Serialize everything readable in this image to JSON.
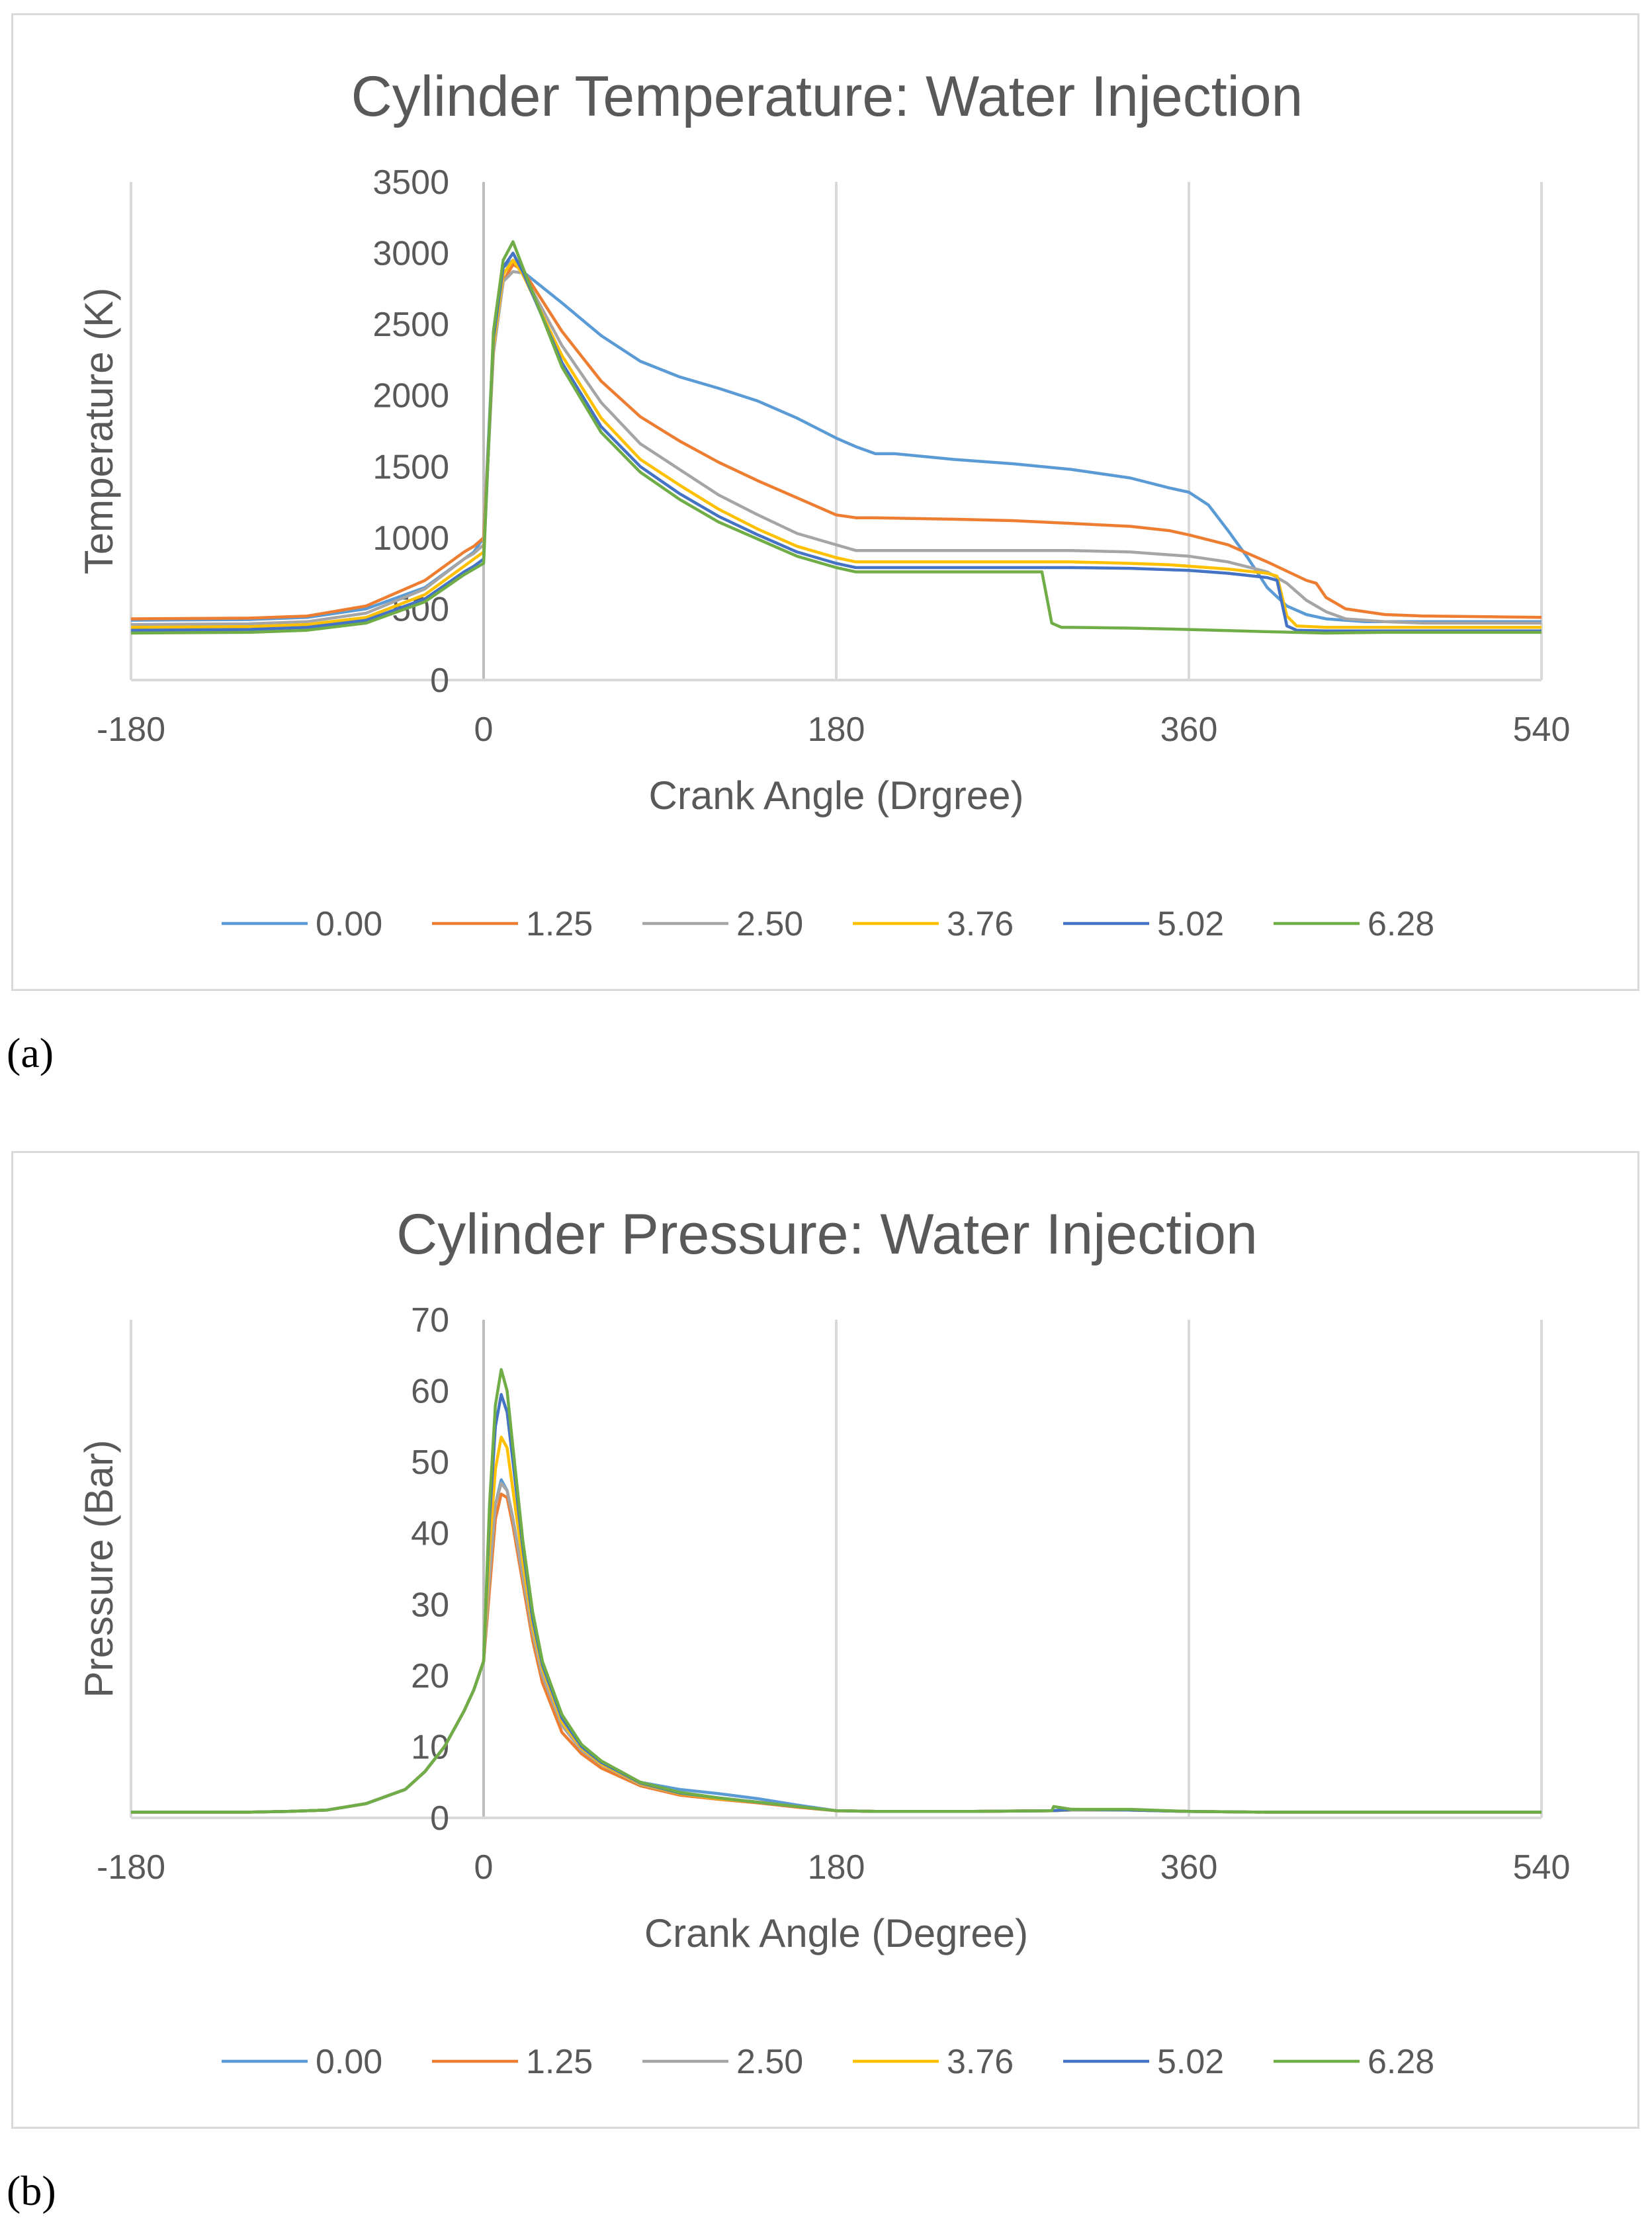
{
  "chart_data": [
    {
      "type": "line",
      "title": "Cylinder Temperature: Water Injection",
      "xlabel": "Crank Angle (Drgree)",
      "ylabel": "Temperature (K)",
      "xlim": [
        -180,
        540
      ],
      "ylim": [
        0,
        3500
      ],
      "xticks": [
        "-180",
        "0",
        "180",
        "360",
        "540"
      ],
      "yticks": [
        "0",
        "500",
        "1000",
        "1500",
        "2000",
        "2500",
        "3000",
        "3500"
      ],
      "grid": "vertical",
      "legend": "bottom",
      "series": [
        {
          "name": "0.00",
          "color": "#5b9bd5",
          "x": [
            -180,
            -120,
            -90,
            -60,
            -30,
            -10,
            -5,
            0,
            5,
            10,
            15,
            20,
            40,
            60,
            80,
            100,
            120,
            140,
            160,
            180,
            190,
            200,
            210,
            240,
            270,
            300,
            330,
            350,
            360,
            370,
            380,
            390,
            400,
            410,
            420,
            430,
            450,
            480,
            540
          ],
          "y": [
            420,
            425,
            440,
            500,
            650,
            850,
            900,
            1000,
            2400,
            2900,
            2950,
            2870,
            2650,
            2420,
            2240,
            2130,
            2050,
            1960,
            1840,
            1700,
            1640,
            1590,
            1590,
            1550,
            1520,
            1480,
            1420,
            1350,
            1320,
            1230,
            1050,
            860,
            650,
            520,
            460,
            430,
            410,
            410,
            410
          ]
        },
        {
          "name": "1.25",
          "color": "#ed7d31",
          "x": [
            -180,
            -120,
            -90,
            -60,
            -30,
            -10,
            -5,
            0,
            5,
            10,
            15,
            20,
            40,
            60,
            80,
            100,
            120,
            140,
            160,
            180,
            190,
            200,
            240,
            270,
            300,
            330,
            350,
            360,
            380,
            400,
            420,
            425,
            430,
            440,
            460,
            480,
            540
          ],
          "y": [
            430,
            435,
            450,
            520,
            700,
            900,
            940,
            1000,
            2300,
            2800,
            2920,
            2880,
            2450,
            2100,
            1850,
            1680,
            1530,
            1400,
            1280,
            1160,
            1140,
            1140,
            1130,
            1120,
            1100,
            1080,
            1050,
            1020,
            950,
            830,
            700,
            680,
            580,
            500,
            460,
            450,
            440
          ]
        },
        {
          "name": "2.50",
          "color": "#a5a5a5",
          "x": [
            -180,
            -120,
            -90,
            -60,
            -30,
            -10,
            -5,
            0,
            5,
            10,
            15,
            20,
            40,
            60,
            80,
            100,
            120,
            140,
            160,
            180,
            190,
            200,
            240,
            270,
            300,
            330,
            350,
            360,
            380,
            400,
            410,
            420,
            430,
            440,
            460,
            480,
            540
          ],
          "y": [
            390,
            395,
            410,
            470,
            640,
            850,
            890,
            950,
            2300,
            2800,
            2870,
            2860,
            2350,
            1950,
            1660,
            1480,
            1300,
            1160,
            1030,
            950,
            910,
            910,
            910,
            910,
            910,
            900,
            880,
            870,
            830,
            760,
            680,
            560,
            480,
            430,
            410,
            400,
            400
          ]
        },
        {
          "name": "3.76",
          "color": "#ffc000",
          "x": [
            -180,
            -120,
            -90,
            -60,
            -30,
            -10,
            -5,
            0,
            5,
            10,
            15,
            20,
            40,
            60,
            80,
            100,
            120,
            140,
            160,
            180,
            190,
            200,
            240,
            270,
            300,
            330,
            350,
            360,
            380,
            400,
            405,
            410,
            415,
            430,
            460,
            540
          ],
          "y": [
            370,
            375,
            390,
            440,
            600,
            800,
            850,
            900,
            2350,
            2850,
            2950,
            2850,
            2280,
            1840,
            1550,
            1370,
            1200,
            1060,
            940,
            860,
            830,
            830,
            830,
            830,
            830,
            820,
            810,
            800,
            780,
            750,
            730,
            450,
            380,
            370,
            370,
            370
          ]
        },
        {
          "name": "5.02",
          "color": "#4472c4",
          "x": [
            -180,
            -120,
            -90,
            -60,
            -30,
            -10,
            -5,
            0,
            5,
            10,
            15,
            20,
            40,
            60,
            80,
            100,
            120,
            140,
            160,
            180,
            190,
            200,
            240,
            270,
            300,
            330,
            350,
            360,
            380,
            400,
            405,
            410,
            415,
            430,
            460,
            540
          ],
          "y": [
            350,
            355,
            370,
            420,
            570,
            760,
            800,
            850,
            2400,
            2900,
            3000,
            2870,
            2230,
            1780,
            1500,
            1310,
            1150,
            1020,
            900,
            820,
            790,
            790,
            790,
            790,
            790,
            785,
            775,
            770,
            750,
            720,
            700,
            380,
            350,
            345,
            345,
            345
          ]
        },
        {
          "name": "6.28",
          "color": "#70ad47",
          "x": [
            -180,
            -120,
            -90,
            -60,
            -30,
            -10,
            -5,
            0,
            5,
            10,
            15,
            20,
            40,
            60,
            80,
            100,
            120,
            140,
            160,
            180,
            190,
            200,
            240,
            270,
            285,
            290,
            295,
            300,
            330,
            360,
            400,
            430,
            460,
            540
          ],
          "y": [
            330,
            335,
            350,
            400,
            550,
            740,
            780,
            820,
            2450,
            2950,
            3080,
            2900,
            2200,
            1740,
            1460,
            1270,
            1110,
            990,
            870,
            790,
            760,
            760,
            760,
            760,
            760,
            400,
            370,
            370,
            365,
            355,
            340,
            330,
            335,
            335
          ]
        }
      ]
    },
    {
      "type": "line",
      "title": "Cylinder Pressure: Water Injection",
      "xlabel": "Crank Angle (Degree)",
      "ylabel": "Pressure (Bar)",
      "xlim": [
        -180,
        540
      ],
      "ylim": [
        0,
        70
      ],
      "xticks": [
        "-180",
        "0",
        "180",
        "360",
        "540"
      ],
      "yticks": [
        "0",
        "10",
        "20",
        "30",
        "40",
        "50",
        "60",
        "70"
      ],
      "grid": "vertical",
      "legend": "bottom",
      "series": [
        {
          "name": "0.00",
          "color": "#5b9bd5",
          "x": [
            -180,
            -120,
            -100,
            -80,
            -60,
            -40,
            -30,
            -20,
            -10,
            -5,
            0,
            3,
            6,
            9,
            12,
            15,
            20,
            25,
            30,
            40,
            50,
            60,
            80,
            100,
            120,
            140,
            160,
            180,
            200,
            250,
            290,
            300,
            330,
            360,
            400,
            450,
            500,
            540
          ],
          "y": [
            0.8,
            0.8,
            0.9,
            1.1,
            2,
            4,
            6.5,
            10,
            15,
            18,
            22,
            34,
            44,
            47.5,
            46,
            42,
            34,
            26,
            20,
            13,
            9.5,
            7.5,
            5,
            4,
            3.4,
            2.7,
            1.8,
            1,
            0.9,
            0.9,
            1,
            1.1,
            1.1,
            0.9,
            0.8,
            0.8,
            0.8,
            0.8
          ]
        },
        {
          "name": "1.25",
          "color": "#ed7d31",
          "x": [
            -180,
            -120,
            -100,
            -80,
            -60,
            -40,
            -30,
            -20,
            -10,
            -5,
            0,
            3,
            6,
            9,
            12,
            15,
            20,
            25,
            30,
            40,
            50,
            60,
            80,
            100,
            120,
            140,
            160,
            180,
            200,
            250,
            290,
            300,
            330,
            360,
            400,
            450,
            500,
            540
          ],
          "y": [
            0.8,
            0.8,
            0.9,
            1.1,
            2,
            4,
            6.5,
            10,
            15,
            18,
            22,
            32,
            42,
            45.5,
            45,
            41,
            33,
            25,
            19,
            12,
            9,
            7,
            4.5,
            3.2,
            2.6,
            2.1,
            1.5,
            1,
            0.9,
            0.9,
            1,
            1.1,
            1.1,
            0.9,
            0.8,
            0.8,
            0.8,
            0.8
          ]
        },
        {
          "name": "2.50",
          "color": "#a5a5a5",
          "x": [
            -180,
            -120,
            -100,
            -80,
            -60,
            -40,
            -30,
            -20,
            -10,
            -5,
            0,
            3,
            6,
            9,
            12,
            15,
            20,
            25,
            30,
            40,
            50,
            60,
            80,
            100,
            120,
            140,
            160,
            180,
            200,
            250,
            290,
            300,
            330,
            360,
            400,
            450,
            500,
            540
          ],
          "y": [
            0.8,
            0.8,
            0.9,
            1.1,
            2,
            4,
            6.5,
            10,
            15,
            18,
            22,
            34,
            44,
            47,
            46,
            42,
            34,
            26,
            20,
            13,
            9.5,
            7.5,
            4.7,
            3.4,
            2.7,
            2.2,
            1.6,
            1,
            0.9,
            0.9,
            1,
            1.1,
            1.1,
            0.9,
            0.8,
            0.8,
            0.8,
            0.8
          ]
        },
        {
          "name": "3.76",
          "color": "#ffc000",
          "x": [
            -180,
            -120,
            -100,
            -80,
            -60,
            -40,
            -30,
            -20,
            -10,
            -5,
            0,
            3,
            6,
            9,
            12,
            15,
            20,
            25,
            30,
            40,
            50,
            60,
            80,
            100,
            120,
            140,
            160,
            180,
            200,
            250,
            290,
            300,
            330,
            360,
            400,
            450,
            500,
            540
          ],
          "y": [
            0.8,
            0.8,
            0.9,
            1.1,
            2,
            4,
            6.5,
            10,
            15,
            18,
            22,
            38,
            49,
            53.5,
            52,
            46,
            36,
            27,
            21,
            13.5,
            9.8,
            7.6,
            4.8,
            3.4,
            2.7,
            2.2,
            1.6,
            1,
            0.9,
            0.9,
            1,
            1.2,
            1.1,
            0.9,
            0.8,
            0.8,
            0.8,
            0.8
          ]
        },
        {
          "name": "5.02",
          "color": "#4472c4",
          "x": [
            -180,
            -120,
            -100,
            -80,
            -60,
            -40,
            -30,
            -20,
            -10,
            -5,
            0,
            3,
            6,
            9,
            12,
            15,
            20,
            25,
            30,
            40,
            50,
            60,
            80,
            100,
            120,
            140,
            160,
            180,
            200,
            250,
            290,
            300,
            330,
            360,
            400,
            450,
            500,
            540
          ],
          "y": [
            0.8,
            0.8,
            0.9,
            1.1,
            2,
            4,
            6.5,
            10,
            15,
            18,
            22,
            42,
            55,
            59.5,
            57,
            50,
            38,
            28,
            21.5,
            14,
            10,
            7.8,
            4.9,
            3.5,
            2.8,
            2.2,
            1.6,
            1,
            0.9,
            0.9,
            1,
            1.2,
            1.1,
            0.9,
            0.8,
            0.8,
            0.8,
            0.8
          ]
        },
        {
          "name": "6.28",
          "color": "#70ad47",
          "x": [
            -180,
            -120,
            -100,
            -80,
            -60,
            -40,
            -30,
            -20,
            -10,
            -5,
            0,
            3,
            6,
            9,
            12,
            15,
            20,
            25,
            30,
            40,
            50,
            60,
            80,
            100,
            120,
            140,
            160,
            180,
            200,
            250,
            290,
            291,
            300,
            330,
            360,
            400,
            450,
            500,
            540
          ],
          "y": [
            0.8,
            0.8,
            0.9,
            1.1,
            2,
            4,
            6.5,
            10,
            15,
            18,
            22,
            44,
            58,
            63,
            60,
            52,
            39,
            29,
            22,
            14.5,
            10.3,
            8,
            5,
            3.6,
            2.8,
            2.2,
            1.6,
            1,
            0.9,
            0.9,
            1,
            1.6,
            1.2,
            1.2,
            0.9,
            0.8,
            0.8,
            0.8,
            0.8
          ]
        }
      ]
    }
  ],
  "captions": {
    "a": "(a)",
    "b": "(b)"
  }
}
